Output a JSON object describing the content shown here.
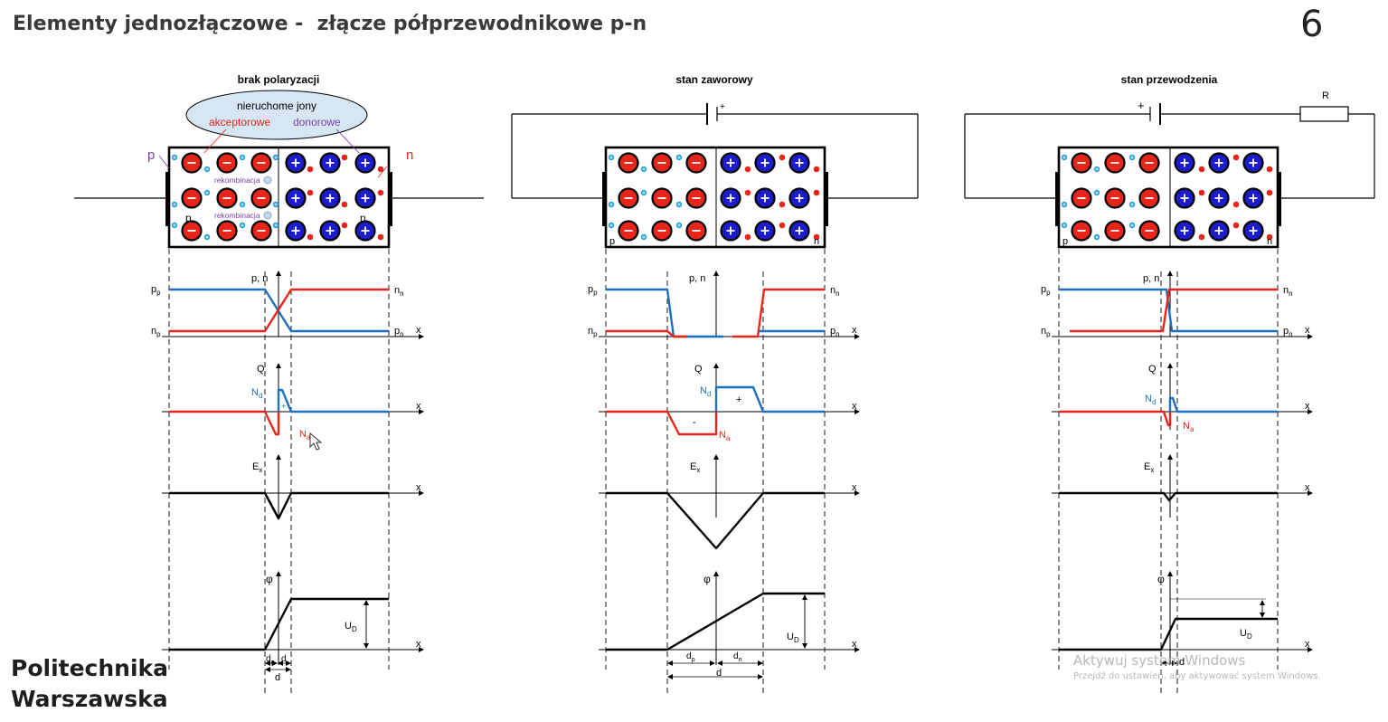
{
  "slide": {
    "title": "Elementy jednozłączowe -  złącze półprzewodnikowe p-n",
    "page_number": "6",
    "logo_line1": "Politechnika",
    "logo_line2": "Warszawska"
  },
  "watermark": {
    "line1": "Aktywuj system Windows",
    "line2": "Przejdź do ustawień, aby aktywować system Windows."
  },
  "panels": [
    {
      "title": "brak polaryzacji"
    },
    {
      "title": "stan zaworowy",
      "battery_sign": "+"
    },
    {
      "title": "stan przewodzenia",
      "battery_sign": "+",
      "resistor_label": "R"
    }
  ],
  "bubble": {
    "heading": "nieruchome jony",
    "acceptor": "akceptorowe",
    "donor": "donorowe",
    "acceptor_color": "#e8251b",
    "donor_color": "#7a3fb0"
  },
  "labels": {
    "p": "p",
    "n": "n",
    "recombination": "rekombinacja",
    "pn_axis": "p, n",
    "x": "x",
    "Q": "Q",
    "Ex": "E",
    "Ex_sub": "x",
    "phi": "φ",
    "pp": "p",
    "pp_sub": "p",
    "np": "n",
    "np_sub": "p",
    "nn": "n",
    "nn_sub": "n",
    "pn": "p",
    "pn_sub": "n",
    "Nd": "N",
    "Nd_sub": "d",
    "Na": "N",
    "Na_sub": "a",
    "UD": "U",
    "UD_sub": "D",
    "dp": "d",
    "dp_sub": "p",
    "dn": "d",
    "dn_sub": "n",
    "d": "d",
    "plus": "+",
    "minus": "-"
  },
  "colors": {
    "holes": "#1f6fbf",
    "electrons": "#e8251b",
    "acceptor_ion": "#e8251b",
    "donor_ion": "#1c1ccc",
    "minor_hole": "#1fa0d8"
  }
}
